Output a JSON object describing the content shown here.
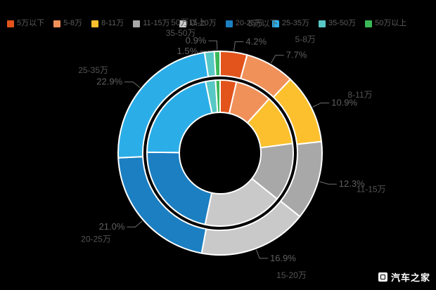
{
  "background": "#000000",
  "legend": {
    "items": [
      {
        "label": "5万以下",
        "color": "#E2541B"
      },
      {
        "label": "5-8万",
        "color": "#F0915A"
      },
      {
        "label": "8-11万",
        "color": "#FCC02E"
      },
      {
        "label": "11-15万",
        "color": "#A8A8A8"
      },
      {
        "label": "15-20万",
        "color": "#C9C9C9"
      },
      {
        "label": "20-25万",
        "color": "#1B7FC2"
      },
      {
        "label": "25-35万",
        "color": "#2BAEE8"
      },
      {
        "label": "35-50万",
        "color": "#58C8C6"
      },
      {
        "label": "50万以上",
        "color": "#3BB858"
      }
    ]
  },
  "watermark": {
    "label": "汽车之家"
  },
  "chart_data": {
    "type": "donut",
    "subtype": "nested-two-ring",
    "legend_position": "top",
    "background": "#000000",
    "categories": [
      "5万以下",
      "5-8万",
      "8-11万",
      "11-15万",
      "15-20万",
      "20-25万",
      "25-35万",
      "35-50万",
      "50万以上"
    ],
    "colors": [
      "#E2541B",
      "#F0915A",
      "#FCC02E",
      "#A8A8A8",
      "#C9C9C9",
      "#1B7FC2",
      "#2BAEE8",
      "#58C8C6",
      "#3BB858"
    ],
    "series": [
      {
        "name": "outer-ring",
        "values": [
          4.2,
          7.7,
          10.9,
          12.3,
          16.9,
          21.0,
          22.9,
          1.5,
          0.9
        ],
        "labels": [
          "4.2%",
          "7.7%",
          "10.9%",
          "12.3%",
          "16.9%",
          "21.0%",
          "22.9%",
          "1.5%",
          "0.9%"
        ]
      },
      {
        "name": "inner-ring",
        "values": [
          3.6,
          8.1,
          11.2,
          12.9,
          17.5,
          21.9,
          21.6,
          2.2,
          1.0
        ],
        "labels": []
      }
    ],
    "title": "",
    "unit": "%"
  },
  "geometry_note": "percent labels and category labels drawn outside rings with leader lines"
}
